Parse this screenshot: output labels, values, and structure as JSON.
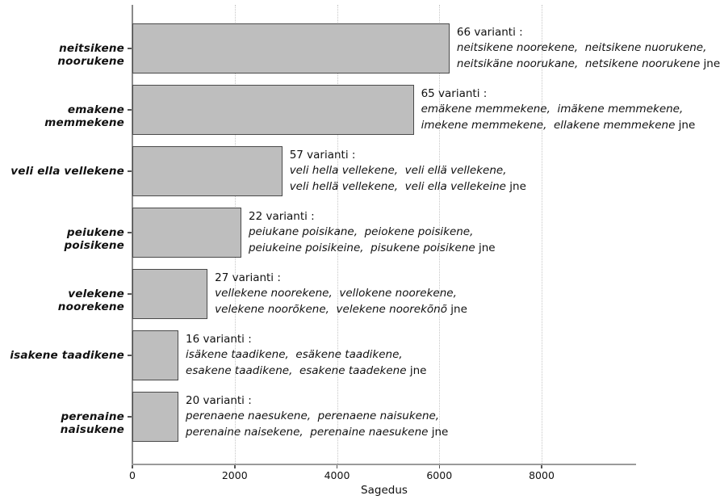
{
  "chart_data": {
    "type": "bar",
    "orientation": "horizontal",
    "title": "",
    "xlabel": "Sagedus",
    "xlim": [
      0,
      9800
    ],
    "xticks": [
      0,
      2000,
      4000,
      6000,
      8000
    ],
    "grid": "vertical-dotted",
    "legend": "none",
    "categories": [
      "neitsikene noorukene",
      "emakene memmekene",
      "veli ella vellekene",
      "peiukene poisikene",
      "velekene noorekene",
      "isakene taadikene",
      "perenaine naisukene"
    ],
    "values": [
      6200,
      5500,
      2930,
      2130,
      1470,
      900,
      900
    ],
    "annotations": [
      {
        "count": "66 varianti :",
        "line1": "neitsikene noorekene,  neitsikene nuorukene,",
        "line2": "neitsikäne noorukane,  netsikene noorukene",
        "suffix": " jne"
      },
      {
        "count": "65 varianti :",
        "line1": "emäkene memmekene,  imäkene memmekene,",
        "line2": "imekene memmekene,  ellakene memmekene",
        "suffix": " jne"
      },
      {
        "count": "57 varianti :",
        "line1": "veli hella vellekene,  veli ellä vellekene,",
        "line2": "veli hellä vellekene,  veli ella vellekeine",
        "suffix": " jne"
      },
      {
        "count": "22 varianti :",
        "line1": "peiukane poisikane,  peiokene poisikene,",
        "line2": "peiukeine poisikeine,  pisukene poisikene",
        "suffix": " jne"
      },
      {
        "count": "27 varianti :",
        "line1": "vellekene noorekene,  vellokene noorekene,",
        "line2": "velekene noorõkene,  velekene noorekõnõ",
        "suffix": " jne"
      },
      {
        "count": "16 varianti :",
        "line1": "isäkene taadikene,  esäkene taadikene,",
        "line2": "esakene taadikene,  esakene taadekene",
        "suffix": " jne"
      },
      {
        "count": "20 varianti :",
        "line1": "perenaene naesukene,  perenaene naisukene,",
        "line2": "perenaine naisekene,  perenaine naesukene",
        "suffix": " jne"
      }
    ],
    "colors": {
      "bar_fill": "#bebebe",
      "bar_border": "#4a4a4a",
      "grid": "#c6c6c6",
      "axis": "#9a9a9a",
      "text": "#111111"
    }
  }
}
